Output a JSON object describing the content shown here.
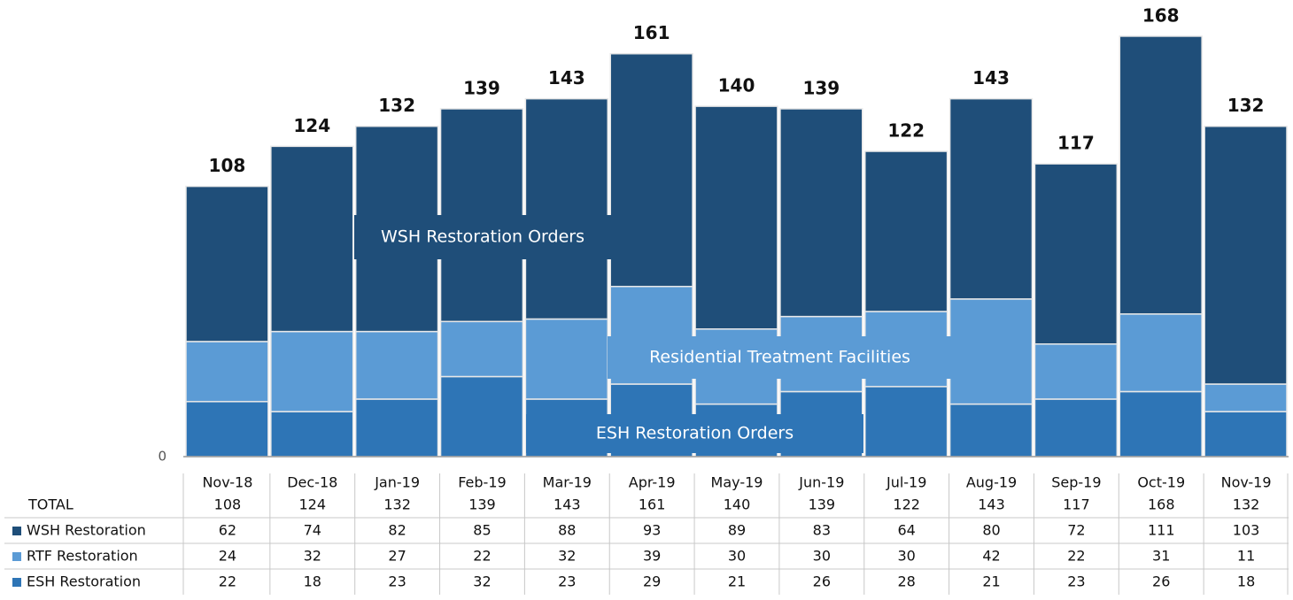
{
  "chart_data": {
    "type": "stacked_bar",
    "categories": [
      "Nov-18",
      "Dec-18",
      "Jan-19",
      "Feb-19",
      "Mar-19",
      "Apr-19",
      "May-19",
      "Jun-19",
      "Jul-19",
      "Aug-19",
      "Sep-19",
      "Oct-19",
      "Nov-19"
    ],
    "totals_label": "TOTAL",
    "totals": [
      108,
      124,
      132,
      139,
      143,
      161,
      140,
      139,
      122,
      143,
      117,
      168,
      132
    ],
    "series": [
      {
        "name": "WSH Restoration",
        "color": "#1f4e79",
        "values": [
          62,
          74,
          82,
          85,
          88,
          93,
          89,
          83,
          64,
          80,
          72,
          111,
          103
        ]
      },
      {
        "name": "RTF Restoration",
        "color": "#5b9bd5",
        "values": [
          24,
          32,
          27,
          22,
          32,
          39,
          30,
          30,
          30,
          42,
          22,
          31,
          11
        ]
      },
      {
        "name": "ESH Restoration",
        "color": "#2e75b6",
        "values": [
          22,
          18,
          23,
          32,
          23,
          29,
          21,
          26,
          28,
          21,
          23,
          26,
          18
        ]
      }
    ],
    "annotations": [
      "WSH Restoration Orders",
      "Residential Treatment Facilities",
      "ESH Restoration Orders"
    ],
    "ylim": [
      0,
      180
    ],
    "yticks": [
      0
    ]
  }
}
